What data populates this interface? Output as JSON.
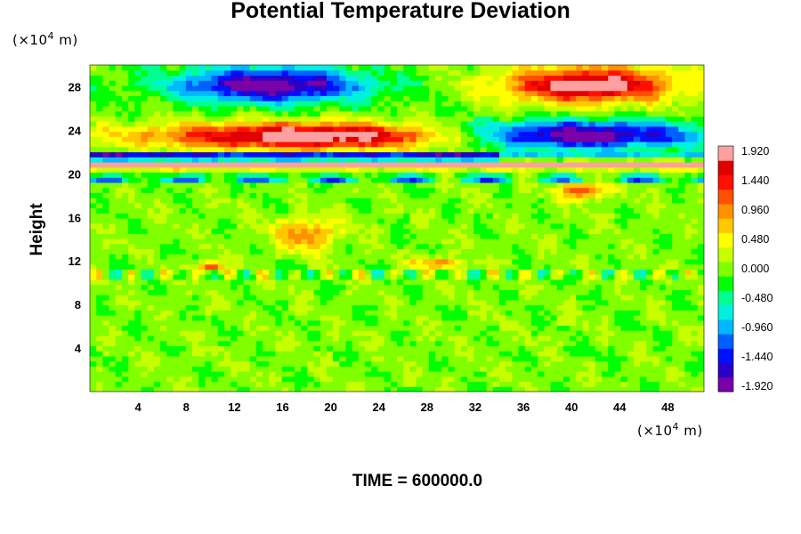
{
  "chart_data": {
    "type": "heatmap",
    "title": "Potential Temperature Deviation",
    "ylabel": "Height",
    "xlabel": "",
    "x_unit": "(×10",
    "x_unit_exp": "4",
    "x_unit_tail": " m)",
    "y_unit": "(×10",
    "y_unit_exp": "4",
    "y_unit_tail": " m)",
    "footer": "TIME = 600000.0",
    "xlim": [
      0,
      51
    ],
    "ylim": [
      0,
      30
    ],
    "x_ticks": [
      "4",
      "8",
      "12",
      "16",
      "20",
      "24",
      "28",
      "32",
      "36",
      "40",
      "44",
      "48"
    ],
    "y_ticks": [
      "4",
      "8",
      "12",
      "16",
      "20",
      "24",
      "28"
    ],
    "colorbar": {
      "min": -1.92,
      "max": 1.92,
      "tick_labels": [
        "1.920",
        "1.440",
        "0.960",
        "0.480",
        "0.000",
        "-0.480",
        "-0.960",
        "-1.440",
        "-1.920"
      ],
      "colors": [
        "#7a00a8",
        "#2a00c8",
        "#0010ff",
        "#0060ff",
        "#00b8ff",
        "#00f0e0",
        "#00ff90",
        "#00ff00",
        "#80ff00",
        "#c8ff00",
        "#ffff00",
        "#ffc800",
        "#ff9000",
        "#ff5000",
        "#ff1000",
        "#e00000",
        "#ffa0a0"
      ]
    },
    "features": [
      {
        "kind": "cold",
        "x": 15,
        "y": 28.2,
        "rx": 8,
        "ry": 1.6,
        "amp": -2.0
      },
      {
        "kind": "warm",
        "x": 41.5,
        "y": 28.2,
        "rx": 7,
        "ry": 1.6,
        "amp": 2.0
      },
      {
        "kind": "warm",
        "x": 19,
        "y": 23.5,
        "rx": 14,
        "ry": 1.2,
        "amp": 2.1
      },
      {
        "kind": "cold",
        "x": 40,
        "y": 23.6,
        "rx": 11,
        "ry": 1.3,
        "amp": -2.1
      },
      {
        "kind": "warm",
        "x": 18,
        "y": 14.5,
        "rx": 2.5,
        "ry": 1.5,
        "amp": 1.0
      },
      {
        "kind": "warm",
        "x": 41,
        "y": 18.5,
        "rx": 2.0,
        "ry": 0.8,
        "amp": 1.3
      },
      {
        "kind": "warm",
        "x": 29,
        "y": 11.8,
        "rx": 2.0,
        "ry": 0.5,
        "amp": 1.0
      },
      {
        "kind": "warm",
        "x": 10,
        "y": 11.5,
        "rx": 1.0,
        "ry": 0.5,
        "amp": 1.4
      }
    ]
  }
}
